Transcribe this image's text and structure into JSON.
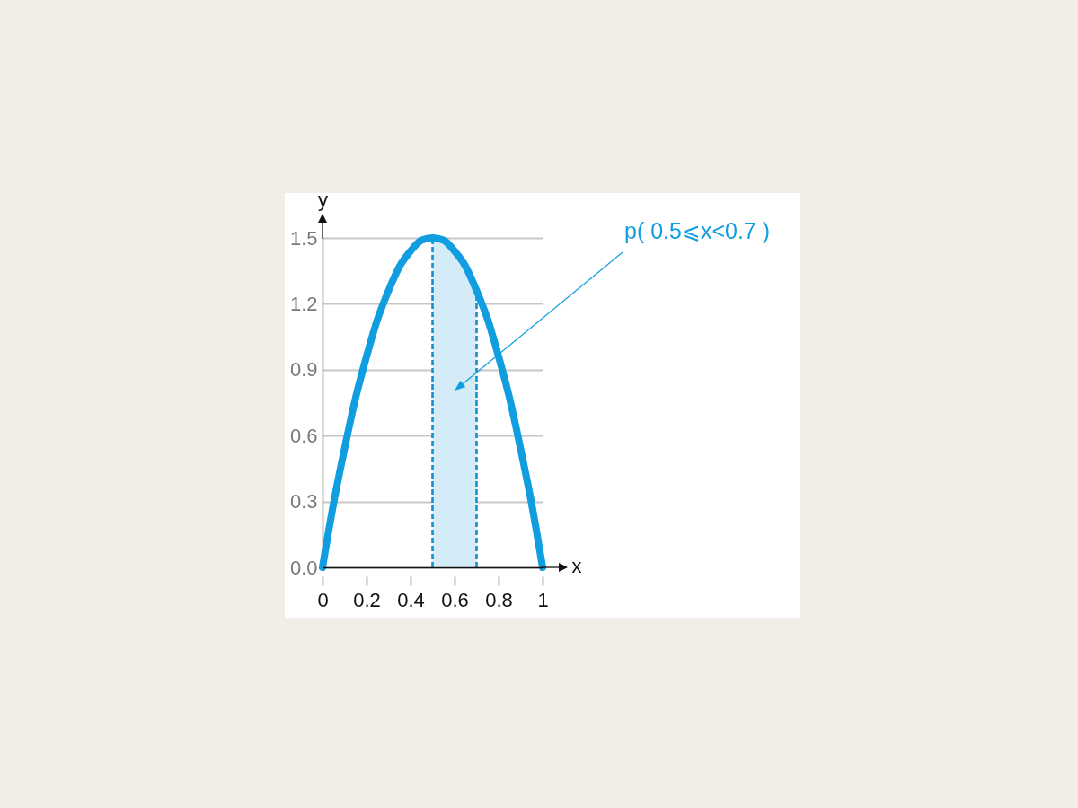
{
  "chart_data": {
    "type": "line",
    "xlabel": "x",
    "ylabel": "y",
    "annotations": [
      "p( 0.5⩽x<0.7 )"
    ],
    "series": [
      {
        "color": "#109ee0",
        "x": [
          0,
          0.05,
          0.1,
          0.15,
          0.2,
          0.25,
          0.3,
          0.35,
          0.4,
          0.45,
          0.5,
          0.55,
          0.6,
          0.65,
          0.7,
          0.75,
          0.8,
          0.85,
          0.9,
          0.95,
          1
        ],
        "values": [
          0,
          0.29,
          0.54,
          0.77,
          0.96,
          1.13,
          1.26,
          1.37,
          1.44,
          1.49,
          1.5,
          1.49,
          1.44,
          1.37,
          1.26,
          1.13,
          0.96,
          0.77,
          0.54,
          0.29,
          0
        ]
      },
      {
        "type": "area",
        "color": "#d4ebf8",
        "x": [
          0.5,
          0.55,
          0.6,
          0.65,
          0.7
        ],
        "values": [
          1.5,
          1.49,
          1.44,
          1.37,
          1.26
        ]
      }
    ],
    "ref_lines": [
      {
        "axis": "x",
        "value": 0.5,
        "color": "#168fd2",
        "line_style": "dashed"
      },
      {
        "axis": "x",
        "value": 0.7,
        "color": "#168fd2",
        "line_style": "dashed"
      }
    ],
    "xlim": [
      0,
      1
    ],
    "ylim": [
      0,
      1.5
    ],
    "xticks": [
      0,
      0.2,
      0.4,
      0.6,
      0.8,
      1
    ],
    "yticks": [
      {
        "value": 0,
        "label": "0.0"
      },
      0.3,
      0.6,
      0.9,
      1.2,
      1.5
    ],
    "grid": "y"
  }
}
